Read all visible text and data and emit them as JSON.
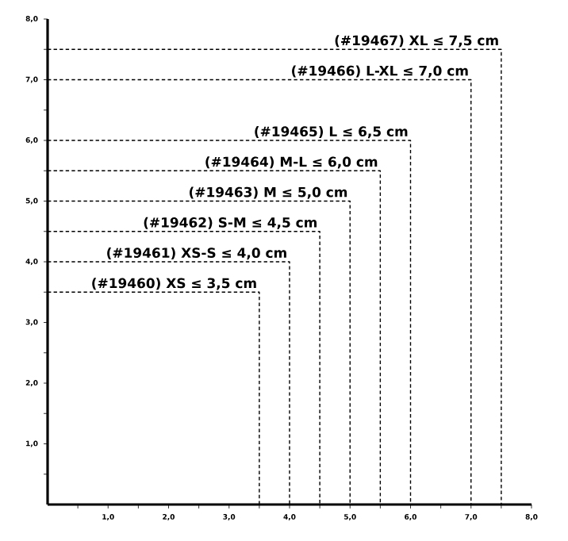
{
  "chart_data": {
    "type": "line",
    "line_style": "dashed",
    "marker": "none",
    "xlim": [
      0,
      8
    ],
    "ylim": [
      0,
      8
    ],
    "xticks": [
      {
        "value": 0.5,
        "label": null
      },
      {
        "value": 1,
        "label": "1,0"
      },
      {
        "value": 1.5,
        "label": null
      },
      {
        "value": 2,
        "label": "2,0"
      },
      {
        "value": 2.5,
        "label": null
      },
      {
        "value": 3,
        "label": "3,0"
      },
      {
        "value": 3.5,
        "label": null
      },
      {
        "value": 4,
        "label": "4,0"
      },
      {
        "value": 4.5,
        "label": null
      },
      {
        "value": 5,
        "label": "5,0"
      },
      {
        "value": 5.5,
        "label": null
      },
      {
        "value": 6,
        "label": "6,0"
      },
      {
        "value": 6.5,
        "label": null
      },
      {
        "value": 7,
        "label": "7,0"
      },
      {
        "value": 7.5,
        "label": null
      },
      {
        "value": 8,
        "label": "8,0"
      }
    ],
    "yticks": [
      {
        "value": 0.5,
        "label": null
      },
      {
        "value": 1,
        "label": "1,0"
      },
      {
        "value": 1.5,
        "label": null
      },
      {
        "value": 2,
        "label": "2,0"
      },
      {
        "value": 2.5,
        "label": null
      },
      {
        "value": 3,
        "label": "3,0"
      },
      {
        "value": 3.5,
        "label": null
      },
      {
        "value": 4,
        "label": "4,0"
      },
      {
        "value": 4.5,
        "label": null
      },
      {
        "value": 5,
        "label": "5,0"
      },
      {
        "value": 5.5,
        "label": null
      },
      {
        "value": 6,
        "label": "6,0"
      },
      {
        "value": 6.5,
        "label": null
      },
      {
        "value": 7,
        "label": "7,0"
      },
      {
        "value": 7.5,
        "label": null
      },
      {
        "value": 8,
        "label": "8,0"
      }
    ],
    "series": [
      {
        "color": "#000000",
        "x": [
          0,
          3.5,
          3.5
        ],
        "values": [
          3.5,
          3.5,
          0
        ]
      },
      {
        "color": "#000000",
        "x": [
          0,
          4,
          4
        ],
        "values": [
          4,
          4,
          0
        ]
      },
      {
        "color": "#000000",
        "x": [
          0,
          4.5,
          4.5
        ],
        "values": [
          4.5,
          4.5,
          0
        ]
      },
      {
        "color": "#000000",
        "x": [
          0,
          5,
          5
        ],
        "values": [
          5,
          5,
          0
        ]
      },
      {
        "color": "#000000",
        "x": [
          0,
          5.5,
          5.5
        ],
        "values": [
          5.5,
          5.5,
          0
        ]
      },
      {
        "color": "#000000",
        "x": [
          0,
          6,
          6
        ],
        "values": [
          6,
          6,
          0
        ]
      },
      {
        "color": "#000000",
        "x": [
          0,
          7,
          7
        ],
        "values": [
          7,
          7,
          0
        ]
      },
      {
        "color": "#000000",
        "x": [
          0,
          7.5,
          7.5
        ],
        "values": [
          7.5,
          7.5,
          0
        ]
      }
    ],
    "annotations": [
      {
        "text": "(#19460) XS ≤ 3,5 cm",
        "x": 3.5,
        "y": 3.5
      },
      {
        "text": "(#19461) XS-S ≤ 4,0 cm",
        "x": 4,
        "y": 4
      },
      {
        "text": "(#19462) S-M ≤ 4,5 cm",
        "x": 4.5,
        "y": 4.5
      },
      {
        "text": "(#19463) M ≤ 5,0 cm",
        "x": 5,
        "y": 5
      },
      {
        "text": "(#19464) M-L ≤ 6,0 cm",
        "x": 5.5,
        "y": 5.5
      },
      {
        "text": "(#19465) L ≤ 6,5 cm",
        "x": 6,
        "y": 6
      },
      {
        "text": "(#19466) L-XL ≤ 7,0 cm",
        "x": 7,
        "y": 7
      },
      {
        "text": "(#19467) XL ≤ 7,5 cm",
        "x": 7.5,
        "y": 7.5
      }
    ]
  }
}
